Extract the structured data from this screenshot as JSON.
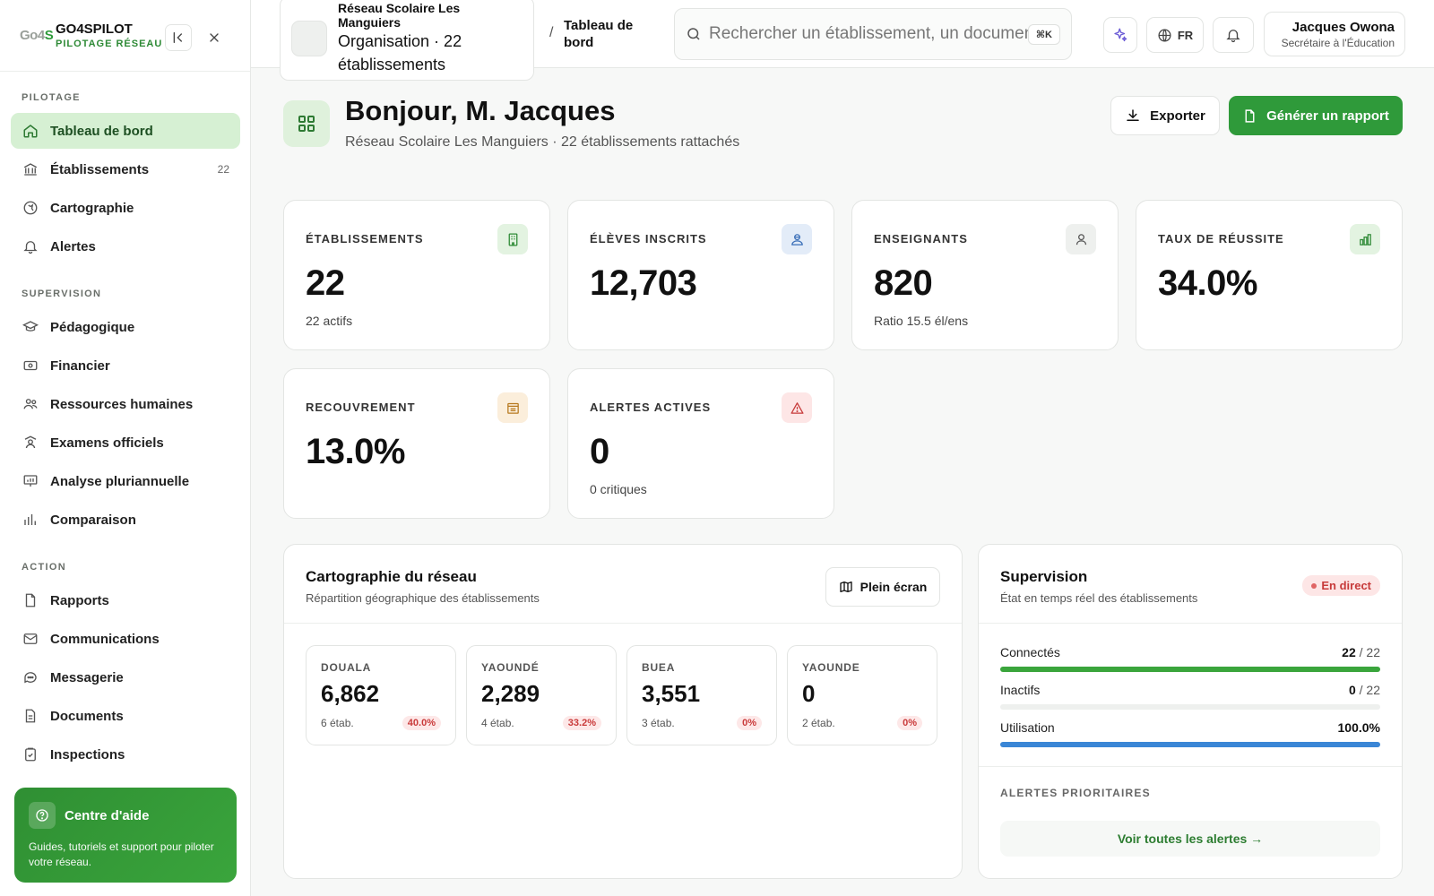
{
  "brand": {
    "logo": "Go4S",
    "name": "GO4SPILOT",
    "subtitle": "PILOTAGE RÉSEAU"
  },
  "sidebar": {
    "sections": [
      {
        "title": "PILOTAGE",
        "items": [
          {
            "label": "Tableau de bord",
            "icon": "home-icon",
            "active": true
          },
          {
            "label": "Établissements",
            "icon": "bank-icon",
            "count": "22"
          },
          {
            "label": "Cartographie",
            "icon": "map-icon"
          },
          {
            "label": "Alertes",
            "icon": "bell-icon"
          }
        ]
      },
      {
        "title": "SUPERVISION",
        "items": [
          {
            "label": "Pédagogique",
            "icon": "graduation-cap-icon"
          },
          {
            "label": "Financier",
            "icon": "banknote-icon"
          },
          {
            "label": "Ressources humaines",
            "icon": "users-icon"
          },
          {
            "label": "Examens officiels",
            "icon": "exam-icon"
          },
          {
            "label": "Analyse pluriannuelle",
            "icon": "presentation-chart-icon"
          },
          {
            "label": "Comparaison",
            "icon": "bar-chart-icon"
          }
        ]
      },
      {
        "title": "ACTION",
        "items": [
          {
            "label": "Rapports",
            "icon": "file-icon"
          },
          {
            "label": "Communications",
            "icon": "mail-icon"
          },
          {
            "label": "Messagerie",
            "icon": "message-icon"
          },
          {
            "label": "Documents",
            "icon": "document-icon"
          },
          {
            "label": "Inspections",
            "icon": "clipboard-check-icon"
          }
        ]
      }
    ],
    "help": {
      "title": "Centre d'aide",
      "text": "Guides, tutoriels et support pour piloter votre réseau."
    }
  },
  "topbar": {
    "org_name": "Réseau Scolaire Les Manguiers",
    "org_meta": "Organisation · 22 établissements",
    "breadcrumb_sep": "/",
    "breadcrumb_current": "Tableau de bord",
    "search_placeholder": "Rechercher un établissement, un document, un utilisateur...",
    "search_shortcut": "⌘K",
    "language": "FR",
    "user_name": "Jacques Owona",
    "user_role": "Secrétaire à l'Éducation"
  },
  "header": {
    "title": "Bonjour, M. Jacques",
    "subtitle": "Réseau Scolaire Les Manguiers · 22 établissements rattachés",
    "export_label": "Exporter",
    "report_label": "Générer un rapport"
  },
  "kpis": [
    {
      "label": "ÉTABLISSEMENTS",
      "value": "22",
      "sub": "22 actifs",
      "icon": "building-icon",
      "tint": "#e3f3e1",
      "color": "#2e8a36"
    },
    {
      "label": "ÉLÈVES INSCRITS",
      "value": "12,703",
      "sub": "",
      "icon": "students-icon",
      "tint": "#e3ecf8",
      "color": "#3a6fb8"
    },
    {
      "label": "ENSEIGNANTS",
      "value": "820",
      "sub": "Ratio 15.5 él/ens",
      "icon": "user-icon",
      "tint": "#eef0ee",
      "color": "#555555"
    },
    {
      "label": "TAUX DE RÉUSSITE",
      "value": "34.0%",
      "sub": "",
      "icon": "bar-chart-icon",
      "tint": "#e3f3e1",
      "color": "#2e8a36"
    },
    {
      "label": "RECOUVREMENT",
      "value": "13.0%",
      "sub": "",
      "icon": "bank-icon",
      "tint": "#fbeedb",
      "color": "#b7791f"
    },
    {
      "label": "ALERTES ACTIVES",
      "value": "0",
      "sub": "0 critiques",
      "icon": "warning-icon",
      "tint": "#fde6e6",
      "color": "#c73a3a"
    }
  ],
  "map": {
    "title": "Cartographie du réseau",
    "subtitle": "Répartition géographique des établissements",
    "fullscreen_label": "Plein écran",
    "regions": [
      {
        "name": "DOUALA",
        "value": "6,862",
        "etab": "6 étab.",
        "rate": "40.0%"
      },
      {
        "name": "YAOUNDÉ",
        "value": "2,289",
        "etab": "4 étab.",
        "rate": "33.2%"
      },
      {
        "name": "BUEA",
        "value": "3,551",
        "etab": "3 étab.",
        "rate": "0%"
      },
      {
        "name": "YAOUNDE",
        "value": "0",
        "etab": "2 étab.",
        "rate": "0%"
      }
    ]
  },
  "supervision": {
    "title": "Supervision",
    "subtitle": "État en temps réel des établissements",
    "live_label": "En direct",
    "rows": [
      {
        "label": "Connectés",
        "value": "22",
        "total": "/ 22",
        "fraction": 1.0,
        "color": "#3aa53c"
      },
      {
        "label": "Inactifs",
        "value": "0",
        "total": "/ 22",
        "fraction": 0.0,
        "color": "#999999"
      },
      {
        "label": "Utilisation",
        "value": "100.0%",
        "total": "",
        "fraction": 1.0,
        "color": "#3a86d6"
      }
    ],
    "alerts_title": "ALERTES PRIORITAIRES",
    "see_all_label": "Voir toutes les alertes →"
  }
}
